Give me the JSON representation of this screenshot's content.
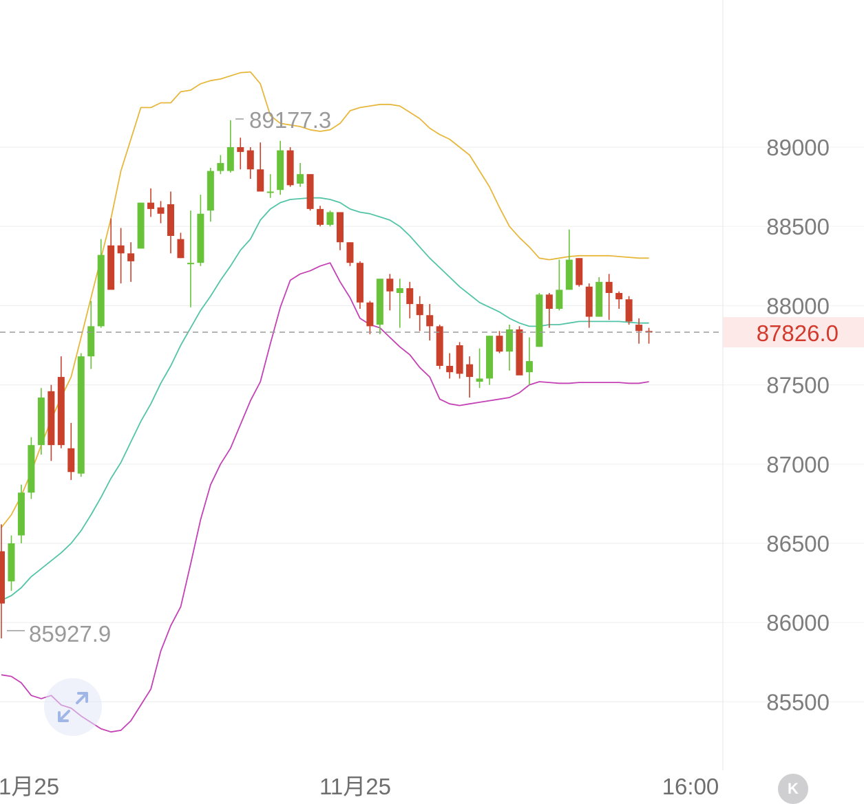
{
  "chart_data": {
    "type": "candlestick",
    "indicator": "bollinger",
    "ylim": [
      85000,
      89500
    ],
    "y_ticks": [
      "89000",
      "88500",
      "88000",
      "87500",
      "87000",
      "86500",
      "86000",
      "85500"
    ],
    "x_ticks": [
      "1月25",
      "11月25",
      "16:00"
    ],
    "current_price": "87826.0",
    "high_marker": "89177.3",
    "low_marker": "85927.9",
    "colors": {
      "up": "#68c23a",
      "down": "#c9412b",
      "upper_band": "#e7b73c",
      "mid_band": "#52c4a6",
      "lower_band": "#c341b5",
      "current": "#d23a2e"
    },
    "candles": [
      [
        86450,
        86620,
        85900,
        86120
      ],
      [
        86260,
        86550,
        86200,
        86500
      ],
      [
        86550,
        86870,
        86500,
        86820
      ],
      [
        86820,
        87170,
        86780,
        87120
      ],
      [
        87120,
        87480,
        87060,
        87420
      ],
      [
        87460,
        87500,
        87020,
        87120
      ],
      [
        87550,
        87680,
        87100,
        87120
      ],
      [
        87100,
        87260,
        86900,
        86950
      ],
      [
        86940,
        87700,
        86920,
        87680
      ],
      [
        87680,
        88030,
        87600,
        87870
      ],
      [
        87870,
        88420,
        87860,
        88320
      ],
      [
        88380,
        88550,
        88120,
        88100
      ],
      [
        88380,
        88490,
        88140,
        88330
      ],
      [
        88330,
        88400,
        88150,
        88280
      ],
      [
        88360,
        88650,
        88360,
        88650
      ],
      [
        88650,
        88740,
        88560,
        88610
      ],
      [
        88620,
        88660,
        88520,
        88580
      ],
      [
        88640,
        88720,
        88330,
        88440
      ],
      [
        88420,
        88460,
        88300,
        88300
      ],
      [
        88270,
        88600,
        87990,
        88270
      ],
      [
        88270,
        88700,
        88250,
        88580
      ],
      [
        88600,
        88870,
        88530,
        88850
      ],
      [
        88850,
        88950,
        88830,
        88900
      ],
      [
        88850,
        89170,
        88840,
        89000
      ],
      [
        89000,
        89060,
        88860,
        88970
      ],
      [
        88980,
        89000,
        88800,
        88860
      ],
      [
        88860,
        89030,
        88720,
        88720
      ],
      [
        88720,
        88830,
        88680,
        88720
      ],
      [
        88730,
        89040,
        88700,
        88980
      ],
      [
        88980,
        89000,
        88750,
        88760
      ],
      [
        88770,
        88900,
        88750,
        88830
      ],
      [
        88830,
        88830,
        88600,
        88610
      ],
      [
        88610,
        88630,
        88500,
        88510
      ],
      [
        88510,
        88600,
        88500,
        88590
      ],
      [
        88590,
        88590,
        88350,
        88400
      ],
      [
        88400,
        88400,
        88250,
        88270
      ],
      [
        88270,
        88280,
        87980,
        88020
      ],
      [
        88020,
        88030,
        87820,
        87870
      ],
      [
        87880,
        88160,
        87820,
        88170
      ],
      [
        88170,
        88200,
        87970,
        88090
      ],
      [
        88080,
        88170,
        87860,
        88110
      ],
      [
        88110,
        88150,
        87920,
        88010
      ],
      [
        88010,
        88060,
        87840,
        87940
      ],
      [
        87940,
        88010,
        87780,
        87870
      ],
      [
        87870,
        87880,
        87600,
        87620
      ],
      [
        87620,
        87700,
        87540,
        87580
      ],
      [
        87750,
        87770,
        87540,
        87570
      ],
      [
        87630,
        87680,
        87420,
        87550
      ],
      [
        87520,
        87730,
        87480,
        87540
      ],
      [
        87540,
        87810,
        87500,
        87810
      ],
      [
        87810,
        87840,
        87700,
        87710
      ],
      [
        87710,
        87880,
        87590,
        87850
      ],
      [
        87850,
        87870,
        87570,
        87560
      ],
      [
        87580,
        87800,
        87500,
        87650
      ],
      [
        87740,
        88080,
        87740,
        88070
      ],
      [
        88070,
        88080,
        87860,
        87980
      ],
      [
        87980,
        88290,
        87970,
        88100
      ],
      [
        88100,
        88480,
        88100,
        88290
      ],
      [
        88300,
        88300,
        88120,
        88130
      ],
      [
        88120,
        88140,
        87860,
        87930
      ],
      [
        87930,
        88180,
        87930,
        88150
      ],
      [
        88150,
        88200,
        87910,
        88080
      ],
      [
        88080,
        88090,
        87980,
        88040
      ],
      [
        88040,
        88060,
        87880,
        87900
      ],
      [
        87880,
        87920,
        87760,
        87840
      ],
      [
        87840,
        87860,
        87760,
        87830
      ]
    ],
    "upper_band": [
      86600,
      86680,
      86800,
      86950,
      87120,
      87280,
      87420,
      87550,
      87800,
      88050,
      88300,
      88550,
      88850,
      89050,
      89250,
      89250,
      89280,
      89280,
      89350,
      89360,
      89400,
      89420,
      89430,
      89450,
      89470,
      89475,
      89400,
      89200,
      89150,
      89140,
      89130,
      89110,
      89100,
      89110,
      89150,
      89230,
      89250,
      89260,
      89270,
      89270,
      89260,
      89220,
      89180,
      89120,
      89080,
      89050,
      89000,
      88950,
      88850,
      88750,
      88620,
      88500,
      88430,
      88370,
      88300,
      88290,
      88300,
      88310,
      88315,
      88315,
      88315,
      88315,
      88310,
      88305,
      88300,
      88300
    ],
    "mid_band": [
      86140,
      86170,
      86220,
      86290,
      86340,
      86390,
      86440,
      86500,
      86580,
      86680,
      86790,
      86910,
      87010,
      87140,
      87270,
      87380,
      87510,
      87620,
      87750,
      87860,
      87970,
      88060,
      88160,
      88250,
      88350,
      88420,
      88540,
      88610,
      88650,
      88670,
      88675,
      88680,
      88680,
      88670,
      88650,
      88610,
      88590,
      88580,
      88560,
      88540,
      88500,
      88440,
      88370,
      88300,
      88240,
      88180,
      88120,
      88070,
      88020,
      87990,
      87960,
      87920,
      87890,
      87870,
      87870,
      87880,
      87880,
      87890,
      87900,
      87900,
      87900,
      87900,
      87900,
      87895,
      87890,
      87890
    ],
    "lower_band": [
      85670,
      85660,
      85620,
      85540,
      85520,
      85540,
      85480,
      85460,
      85410,
      85370,
      85330,
      85310,
      85320,
      85380,
      85480,
      85580,
      85820,
      85980,
      86100,
      86370,
      86650,
      86870,
      87000,
      87100,
      87250,
      87400,
      87520,
      87760,
      87990,
      88160,
      88200,
      88220,
      88250,
      88270,
      88150,
      88050,
      87920,
      87880,
      87860,
      87800,
      87740,
      87690,
      87610,
      87550,
      87410,
      87380,
      87370,
      87380,
      87390,
      87400,
      87410,
      87420,
      87450,
      87500,
      87520,
      87515,
      87510,
      87510,
      87515,
      87515,
      87515,
      87515,
      87515,
      87510,
      87510,
      87520
    ]
  }
}
